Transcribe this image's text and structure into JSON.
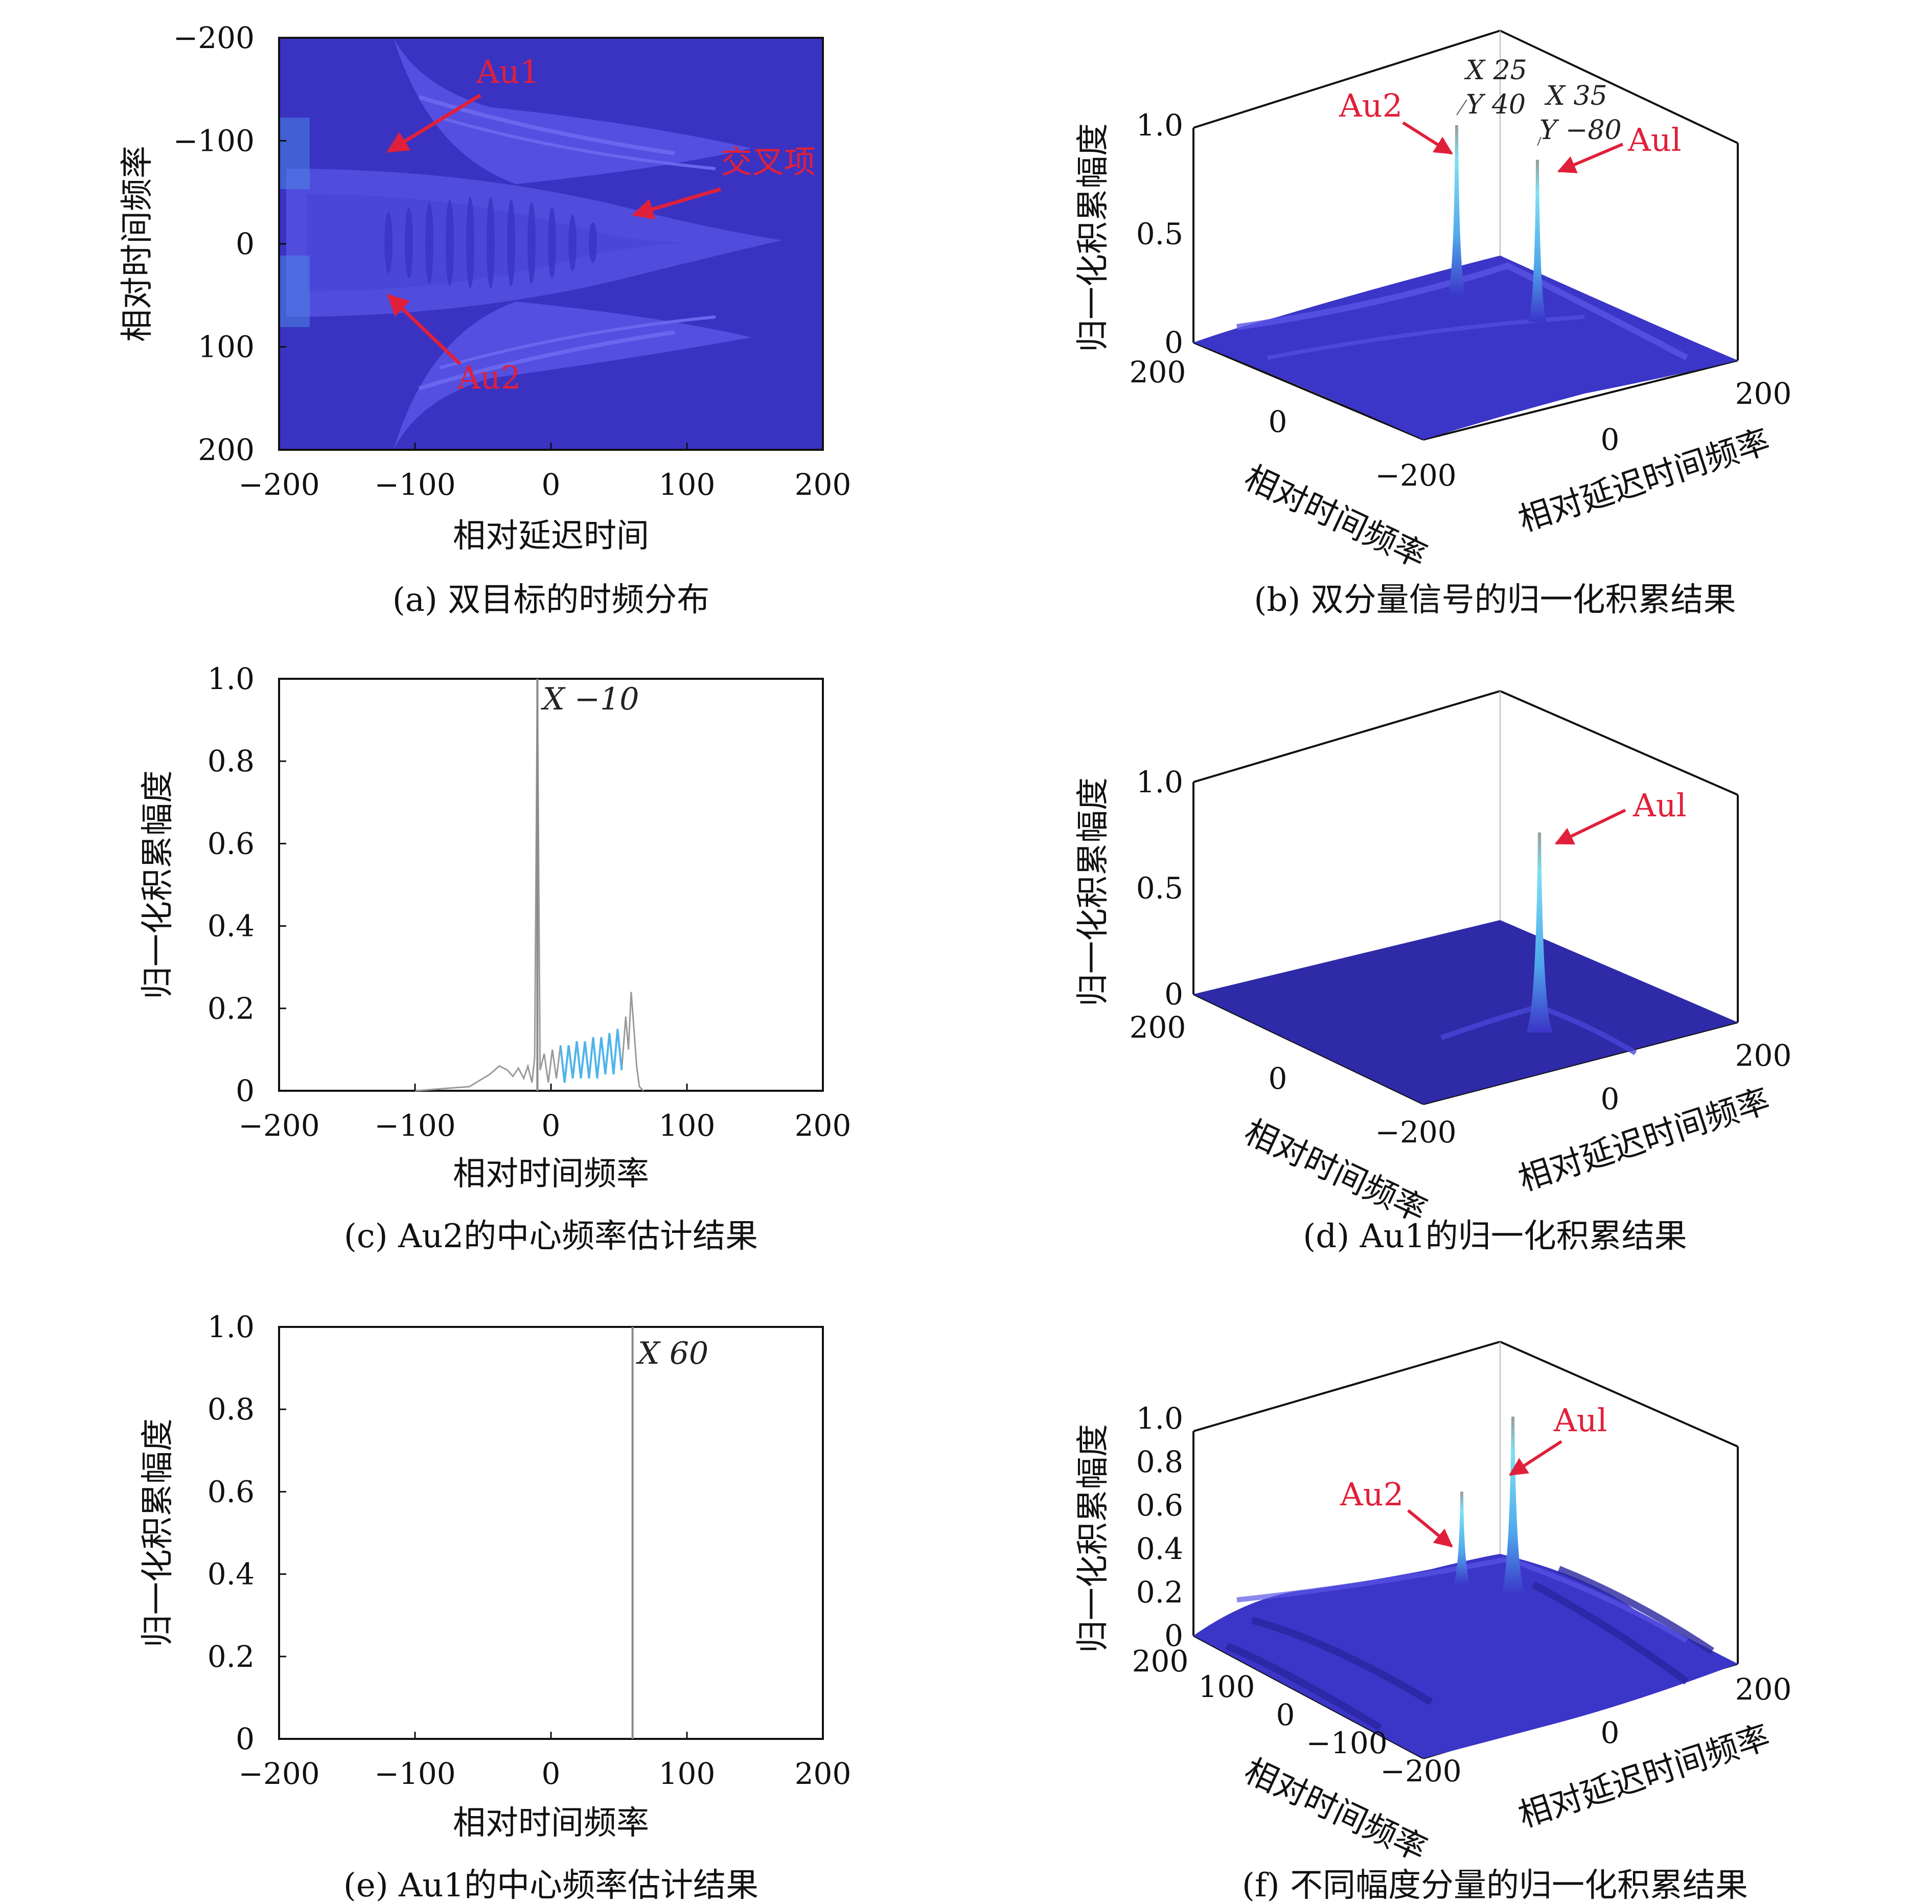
{
  "chart_data": [
    {
      "id": "a",
      "type": "heatmap",
      "caption": "(a) 双目标的时频分布",
      "xlabel": "相对延迟时间",
      "ylabel": "相对时间频率",
      "xlim": [
        -200,
        200
      ],
      "ylim": [
        -200,
        200
      ],
      "y_inverted": true,
      "xticks": [
        "−200",
        "−100",
        "0",
        "100",
        "200"
      ],
      "yticks": [
        "−200",
        "−100",
        "0",
        "100",
        "200"
      ],
      "annotations": [
        {
          "text": "Au1",
          "target": [
            -120,
            -70
          ]
        },
        {
          "text": "交叉项",
          "target": [
            60,
            -20
          ]
        },
        {
          "text": "Au2",
          "target": [
            -120,
            40
          ]
        }
      ]
    },
    {
      "id": "b",
      "type": "surface3d",
      "caption": "(b) 双分量信号的归一化积累结果",
      "zlabel": "归一化积累幅度",
      "xlabel": "相对时间频率",
      "ylabel": "相对延迟时间频率",
      "zticks": [
        "0",
        "0.5",
        "1.0"
      ],
      "xticks": [
        "200",
        "0",
        "−200"
      ],
      "yticks": [
        "0",
        "200"
      ],
      "peaks": [
        {
          "name": "Au2",
          "x": 25,
          "y": 40,
          "z": 1.0
        },
        {
          "name": "Au1",
          "x": 35,
          "y": -80,
          "z": 0.92
        }
      ],
      "datatips": [
        {
          "x_label": "X 25",
          "y_label": "Y 40"
        },
        {
          "x_label": "X 35",
          "y_label": "Y −80"
        }
      ],
      "annotations": [
        "Au2",
        "Aul"
      ]
    },
    {
      "id": "c",
      "type": "line",
      "caption": "(c) Au2的中心频率估计结果",
      "xlabel": "相对时间频率",
      "ylabel": "归一化积累幅度",
      "xlim": [
        -200,
        200
      ],
      "ylim": [
        0,
        1.0
      ],
      "xticks": [
        "−200",
        "−100",
        "0",
        "100",
        "200"
      ],
      "yticks": [
        "0",
        "0.2",
        "0.4",
        "0.6",
        "0.8",
        "1.0"
      ],
      "peak": {
        "x": -10,
        "y": 1.0,
        "label": "X −10"
      },
      "background": [
        {
          "x": -100,
          "y": 0.0
        },
        {
          "x": -60,
          "y": 0.01
        },
        {
          "x": -45,
          "y": 0.04
        },
        {
          "x": -38,
          "y": 0.06
        },
        {
          "x": -32,
          "y": 0.05
        },
        {
          "x": -28,
          "y": 0.035
        },
        {
          "x": -24,
          "y": 0.055
        },
        {
          "x": -20,
          "y": 0.03
        },
        {
          "x": -17,
          "y": 0.06
        },
        {
          "x": -14,
          "y": 0.02
        },
        {
          "x": -12,
          "y": 0.08
        },
        {
          "x": -10,
          "y": 1.0
        },
        {
          "x": -8,
          "y": 0.05
        },
        {
          "x": -5,
          "y": 0.09
        },
        {
          "x": -2,
          "y": 0.02
        },
        {
          "x": 1,
          "y": 0.1
        },
        {
          "x": 4,
          "y": 0.03
        },
        {
          "x": 7,
          "y": 0.11
        },
        {
          "x": 10,
          "y": 0.02
        },
        {
          "x": 13,
          "y": 0.11
        },
        {
          "x": 16,
          "y": 0.03
        },
        {
          "x": 19,
          "y": 0.12
        },
        {
          "x": 22,
          "y": 0.03
        },
        {
          "x": 25,
          "y": 0.12
        },
        {
          "x": 28,
          "y": 0.03
        },
        {
          "x": 31,
          "y": 0.13
        },
        {
          "x": 34,
          "y": 0.03
        },
        {
          "x": 37,
          "y": 0.13
        },
        {
          "x": 40,
          "y": 0.04
        },
        {
          "x": 43,
          "y": 0.14
        },
        {
          "x": 46,
          "y": 0.04
        },
        {
          "x": 49,
          "y": 0.15
        },
        {
          "x": 52,
          "y": 0.05
        },
        {
          "x": 55,
          "y": 0.18
        },
        {
          "x": 57,
          "y": 0.1
        },
        {
          "x": 59,
          "y": 0.24
        },
        {
          "x": 61,
          "y": 0.15
        },
        {
          "x": 63,
          "y": 0.06
        },
        {
          "x": 65,
          "y": 0.01
        },
        {
          "x": 68,
          "y": 0.0
        }
      ]
    },
    {
      "id": "d",
      "type": "surface3d",
      "caption": "(d) Au1的归一化积累结果",
      "zlabel": "归一化积累幅度",
      "xlabel": "相对时间频率",
      "ylabel": "相对延迟时间频率",
      "zticks": [
        "0",
        "0.5",
        "1.0"
      ],
      "xticks": [
        "200",
        "0",
        "−200"
      ],
      "yticks": [
        "0",
        "200"
      ],
      "peaks": [
        {
          "name": "Au1",
          "z": 0.9
        }
      ],
      "annotations": [
        "Aul"
      ]
    },
    {
      "id": "e",
      "type": "line",
      "caption": "(e) Au1的中心频率估计结果",
      "xlabel": "相对时间频率",
      "ylabel": "归一化积累幅度",
      "xlim": [
        -200,
        200
      ],
      "ylim": [
        0,
        1.0
      ],
      "xticks": [
        "−200",
        "−100",
        "0",
        "100",
        "200"
      ],
      "yticks": [
        "0",
        "0.2",
        "0.4",
        "0.6",
        "0.8",
        "1.0"
      ],
      "peak": {
        "x": 60,
        "y": 1.0,
        "label": "X 60"
      }
    },
    {
      "id": "f",
      "type": "surface3d",
      "caption": "(f) 不同幅度分量的归一化积累结果",
      "zlabel": "归一化积累幅度",
      "xlabel": "相对时间频率",
      "ylabel": "相对延迟时间频率",
      "zticks": [
        "0",
        "0.2",
        "0.4",
        "0.6",
        "0.8",
        "1.0"
      ],
      "xticks": [
        "200",
        "100",
        "0",
        "−100",
        "−200"
      ],
      "yticks": [
        "0",
        "200"
      ],
      "peaks": [
        {
          "name": "Au2",
          "z": 0.45
        },
        {
          "name": "Au1",
          "z": 0.82
        }
      ],
      "annotations": [
        "Au2",
        "Aul"
      ]
    }
  ],
  "colors": {
    "background_blue": "#3a33c2",
    "surface_blue": "#3b35c8",
    "peak_cyan": "#4fc3f0",
    "annotation_red": "#e0203a",
    "line_gray": "#9a9a9a"
  }
}
